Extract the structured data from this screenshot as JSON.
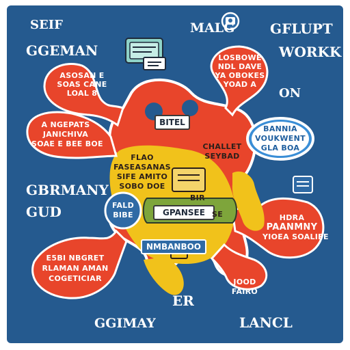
{
  "corner_labels": {
    "top_left_1": "SEIF",
    "top_left_2": "GGEMAN",
    "top_center": "MALG",
    "top_right_1": "GFLUPT",
    "top_right_2": "WORKK",
    "right_mid": "ON",
    "left_mid_1": "GBRMANY",
    "left_mid_2": "GUD",
    "bottom_center": "ER",
    "bottom_left": "GGIMAY",
    "bottom_right": "LANCL"
  },
  "bubbles": {
    "top_right": [
      "LOSBOWE",
      "NDL DAVE",
      "YA OBOKES",
      "YOAD A"
    ],
    "left_upper": [
      "ASOSAN E",
      "SOAS CANE",
      "LOAL 8"
    ],
    "left_mid": [
      "A NGEPATS",
      "JANICHIVA",
      "SOAE E BEE BOE"
    ],
    "blue_right": [
      "BANNIA",
      "VOUKWENT",
      "GLA BOA"
    ],
    "center_right": [
      "CHALLET",
      "SEYBAD"
    ],
    "yellow_center": [
      "FLAO",
      "FASEASANAS",
      "SIFE AMITO",
      "SOBO DOE"
    ],
    "right_lower": [
      "HDRA",
      "PAANMNY",
      "YIOEA SOALIFE"
    ],
    "left_lower": [
      "E5BI NBGRET",
      "RLAMAN AMAN",
      "COGETICIAR"
    ],
    "bottom_red": [
      "JOOD",
      "FAIRO"
    ]
  },
  "pills": {
    "center_top": "BITEL",
    "center_green": "GPANSEE",
    "center_bottom": "NMBANBOO"
  },
  "small_tags": {
    "green_box_top": "BIR",
    "green_box_right": "SE",
    "blue_circle": [
      "FALD",
      "BIBE"
    ]
  },
  "icons": [
    "tablet-icon",
    "calendar-icon",
    "camera-icon",
    "document-icon",
    "bag-icon"
  ],
  "colors": {
    "background": "#255a8f",
    "red": "#e8452b",
    "yellow": "#f1c21b",
    "green": "#7ea53b",
    "blue_bubble": "#3a8ed6"
  }
}
